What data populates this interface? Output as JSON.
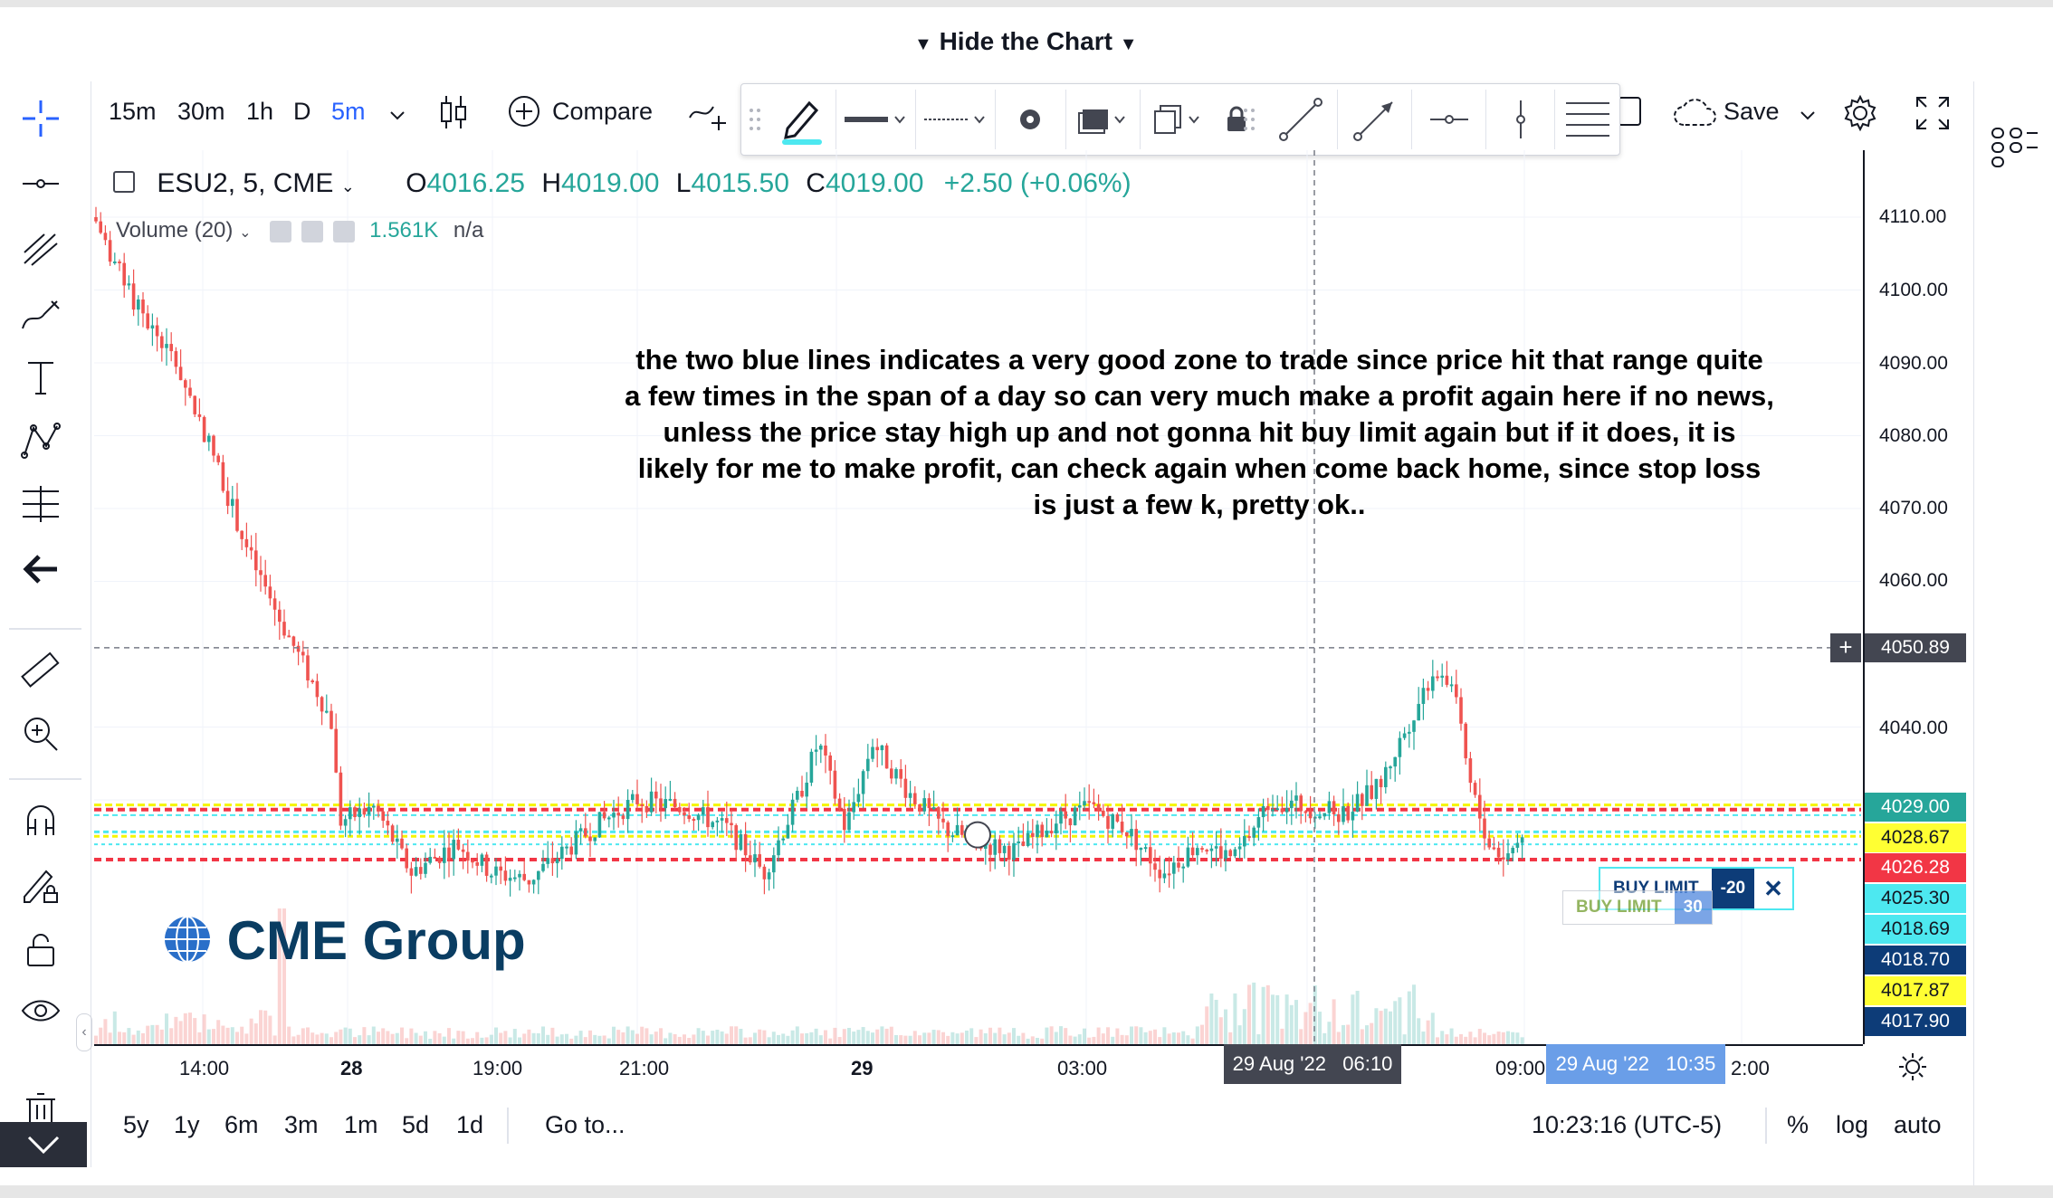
{
  "header": {
    "hide_chart_label": "Hide the Chart"
  },
  "toolbar": {
    "intervals": [
      "15m",
      "30m",
      "1h",
      "D",
      "5m"
    ],
    "compare_label": "Compare",
    "save_label": "Save"
  },
  "legend": {
    "symbol": "ESU2, 5, CME",
    "o_label": "O",
    "o_value": "4016.25",
    "h_label": "H",
    "h_value": "4019.00",
    "l_label": "L",
    "l_value": "4015.50",
    "c_label": "C",
    "c_value": "4019.00",
    "change": "+2.50 (+0.06%)",
    "volume_label": "Volume (20)",
    "volume_value": "1.561K",
    "volume_na": "n/a"
  },
  "annotation": "the two blue lines indicates a very good zone to trade since price hit that range quite a few times in the span of a day so can very much make a profit again here if no news, unless the price stay high up and not gonna hit buy limit again but if it does, it is likely for me to make profit, can check again when come back home, since stop loss is just a few k, pretty ok..",
  "watermark": "CME Group",
  "price_axis": {
    "ticks": [
      "4110.00",
      "4100.00",
      "4090.00",
      "4080.00",
      "4070.00",
      "4060.00",
      "4040.00"
    ],
    "crosshair_price": "4050.89",
    "tags": [
      {
        "text": "4029.00",
        "bg": "#26a69a",
        "fg": "#ffffff"
      },
      {
        "text": "4028.67",
        "bg": "#ffff33",
        "fg": "#131722"
      },
      {
        "text": "4026.28",
        "bg": "#f23645",
        "fg": "#ffffff"
      },
      {
        "text": "4025.30",
        "bg": "#4de8f0",
        "fg": "#131722"
      },
      {
        "text": "4018.69",
        "bg": "#4de8f0",
        "fg": "#131722"
      },
      {
        "text": "4018.70",
        "bg": "#0d3c78",
        "fg": "#ffffff"
      },
      {
        "text": "4017.87",
        "bg": "#ffff33",
        "fg": "#131722"
      },
      {
        "text": "4017.90",
        "bg": "#0d3c78",
        "fg": "#ffffff"
      }
    ]
  },
  "orders": {
    "buy_limit_label": "BUY LIMIT",
    "buy_limit_qty": "-20",
    "buy_limit_label_2": "BUY LIMIT",
    "buy_limit_qty_2": "30"
  },
  "time_axis": {
    "labels": [
      "14:00",
      "28",
      "19:00",
      "21:00",
      "29",
      "03:00",
      "09:00",
      "2:00"
    ],
    "crosshair_time": "29 Aug '22   06:10",
    "current_time": "29 Aug '22   10:35"
  },
  "bottom_bar": {
    "ranges": [
      "5y",
      "1y",
      "6m",
      "3m",
      "1m",
      "5d",
      "1d"
    ],
    "goto_label": "Go to...",
    "clock": "10:23:16 (UTC-5)",
    "percent": "%",
    "log": "log",
    "auto": "auto"
  },
  "colors": {
    "up": "#26a69a",
    "down": "#ef5350",
    "accent": "#2962ff",
    "zone_red": "#f23645",
    "zone_yellow": "#f5f500",
    "zone_cyan": "#4de8f0"
  }
}
